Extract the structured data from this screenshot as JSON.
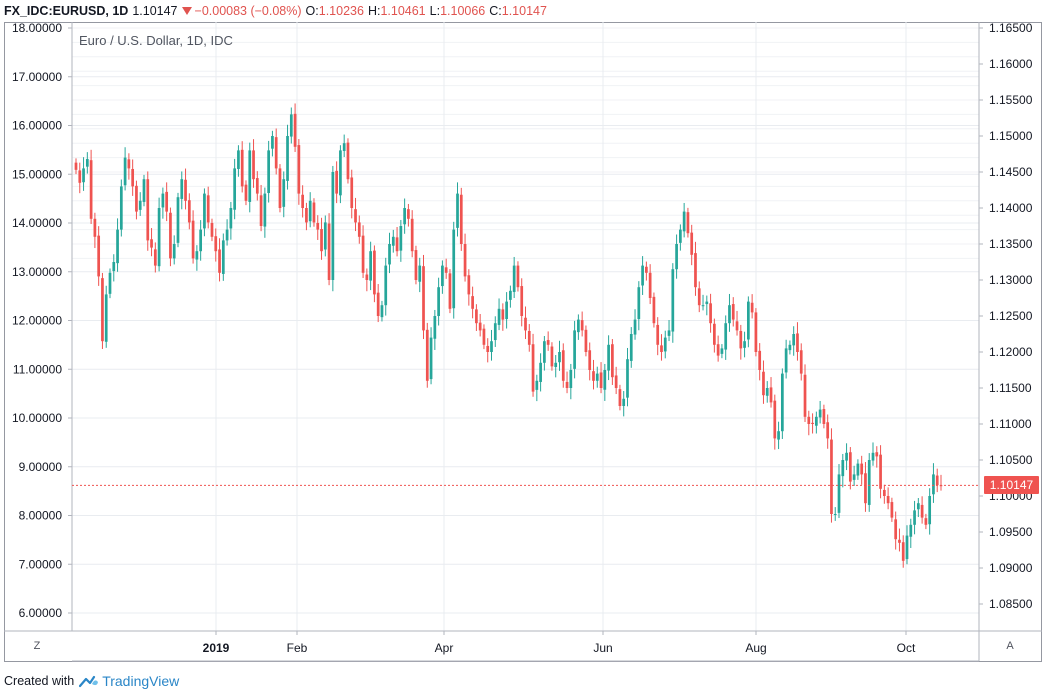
{
  "header": {
    "symbol": "FX_IDC:EURUSD, 1D",
    "last": "1.10147",
    "change": "−0.00083 (−0.08%)",
    "open_label": "O:",
    "open": "1.10236",
    "high_label": "H:",
    "high": "1.10461",
    "low_label": "L:",
    "low": "1.10066",
    "close_label": "C:",
    "close": "1.10147"
  },
  "legend_title": "Euro / U.S. Dollar, 1D, IDC",
  "last_price_badge": "1.10147",
  "corner_left": "Z",
  "corner_right": "A",
  "footer": {
    "created_with": "Created with",
    "brand": "TradingView"
  },
  "colors": {
    "up": "#26a69a",
    "down": "#ef5350",
    "grid": "#e9ecf0",
    "badge": "#ef5350"
  },
  "chart_data": {
    "type": "candlestick",
    "interval": "1D",
    "title": "Euro / U.S. Dollar, 1D, IDC",
    "left_axis": {
      "ticks": [
        "18.00000",
        "17.00000",
        "16.00000",
        "15.00000",
        "14.00000",
        "13.00000",
        "12.00000",
        "11.00000",
        "10.00000",
        "9.00000",
        "8.00000",
        "7.00000",
        "6.00000"
      ],
      "range": [
        6,
        18
      ]
    },
    "right_axis": {
      "ticks": [
        "1.16500",
        "1.16000",
        "1.15500",
        "1.15000",
        "1.14500",
        "1.14000",
        "1.13500",
        "1.13000",
        "1.12500",
        "1.12000",
        "1.11500",
        "1.11000",
        "1.10500",
        "1.10000",
        "1.09500",
        "1.09000",
        "1.08500"
      ],
      "range": [
        1.085,
        1.165
      ]
    },
    "x_axis_labels": [
      "2019",
      "Feb",
      "Apr",
      "Jun",
      "Aug",
      "Oct"
    ],
    "last_price": 1.10147,
    "closes": [
      1.1453,
      1.1435,
      1.1455,
      1.1468,
      1.1385,
      1.136,
      1.1305,
      1.1215,
      1.128,
      1.131,
      1.1325,
      1.137,
      1.143,
      1.147,
      1.1455,
      1.143,
      1.1395,
      1.141,
      1.144,
      1.1355,
      1.1345,
      1.132,
      1.14,
      1.142,
      1.1395,
      1.133,
      1.135,
      1.1415,
      1.144,
      1.141,
      1.138,
      1.133,
      1.134,
      1.137,
      1.142,
      1.138,
      1.136,
      1.134,
      1.131,
      1.1355,
      1.137,
      1.14,
      1.1455,
      1.148,
      1.143,
      1.141,
      1.148,
      1.144,
      1.142,
      1.1375,
      1.142,
      1.148,
      1.15,
      1.1455,
      1.14,
      1.144,
      1.15,
      1.153,
      1.1485,
      1.142,
      1.14,
      1.138,
      1.141,
      1.138,
      1.137,
      1.134,
      1.138,
      1.13,
      1.145,
      1.142,
      1.148,
      1.149,
      1.144,
      1.14,
      1.138,
      1.136,
      1.131,
      1.13,
      1.134,
      1.128,
      1.125,
      1.1265,
      1.132,
      1.135,
      1.136,
      1.134,
      1.1375,
      1.14,
      1.1385,
      1.134,
      1.13,
      1.132,
      1.123,
      1.116,
      1.122,
      1.125,
      1.129,
      1.132,
      1.131,
      1.126,
      1.137,
      1.142,
      1.135,
      1.1305,
      1.128,
      1.126,
      1.124,
      1.123,
      1.121,
      1.12,
      1.1215,
      1.124,
      1.126,
      1.1245,
      1.127,
      1.1285,
      1.132,
      1.129,
      1.125,
      1.123,
      1.121,
      1.1145,
      1.116,
      1.1185,
      1.1215,
      1.121,
      1.118,
      1.1185,
      1.12,
      1.116,
      1.115,
      1.1175,
      1.123,
      1.1245,
      1.123,
      1.12,
      1.1175,
      1.116,
      1.117,
      1.115,
      1.1175,
      1.121,
      1.1165,
      1.115,
      1.1125,
      1.1135,
      1.119,
      1.1225,
      1.1245,
      1.129,
      1.132,
      1.131,
      1.1275,
      1.124,
      1.121,
      1.12,
      1.122,
      1.123,
      1.1315,
      1.135,
      1.137,
      1.1395,
      1.1365,
      1.1335,
      1.129,
      1.1265,
      1.1265,
      1.127,
      1.124,
      1.121,
      1.1195,
      1.1205,
      1.124,
      1.1265,
      1.1245,
      1.123,
      1.1205,
      1.1215,
      1.127,
      1.1255,
      1.12,
      1.1175,
      1.114,
      1.115,
      1.113,
      1.108,
      1.109,
      1.117,
      1.1205,
      1.121,
      1.1225,
      1.12,
      1.117,
      1.111,
      1.11,
      1.11,
      1.111,
      1.112,
      1.11,
      1.108,
      1.0975,
      1.0975,
      1.103,
      1.105,
      1.106,
      1.102,
      1.103,
      1.1045,
      1.103,
      1.099,
      1.105,
      1.106,
      1.1055,
      1.101,
      1.1,
      1.099,
      1.097,
      1.094,
      1.0935,
      1.091,
      1.0945,
      1.096,
      1.098,
      1.099,
      1.097,
      1.096,
      1.1,
      1.103,
      1.1015,
      1.10147
    ]
  }
}
